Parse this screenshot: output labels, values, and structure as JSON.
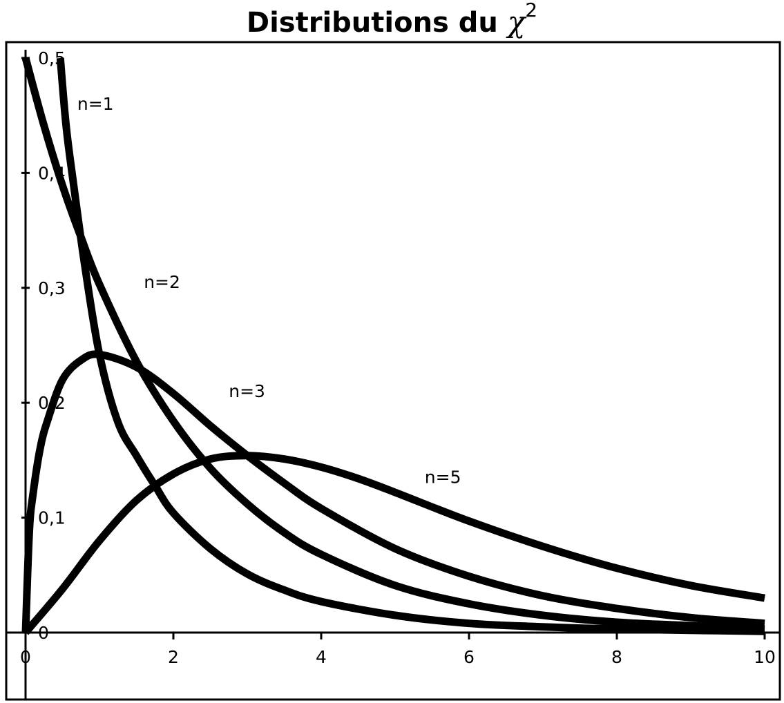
{
  "chart_data": {
    "type": "line",
    "title": {
      "prefix": "Distributions du ",
      "symbol": "χ",
      "exponent": "2"
    },
    "xlabel": "",
    "ylabel": "",
    "xlim": [
      0,
      10
    ],
    "ylim": [
      0,
      0.5
    ],
    "grid": false,
    "legend": "none",
    "x_ticks": [
      {
        "value": 0,
        "label": "0"
      },
      {
        "value": 2,
        "label": "2"
      },
      {
        "value": 4,
        "label": "4"
      },
      {
        "value": 6,
        "label": "6"
      },
      {
        "value": 8,
        "label": "8"
      },
      {
        "value": 10,
        "label": "10"
      }
    ],
    "y_ticks": [
      {
        "value": 0,
        "label": "0"
      },
      {
        "value": 0.1,
        "label": "0,1"
      },
      {
        "value": 0.2,
        "label": "0,2"
      },
      {
        "value": 0.3,
        "label": "0,3"
      },
      {
        "value": 0.4,
        "label": "0,4"
      },
      {
        "value": 0.5,
        "label": "0,5"
      }
    ],
    "line_color": "#000000",
    "series": [
      {
        "label": "n=1",
        "label_at": [
          0.7,
          0.455
        ],
        "x": [
          0.47,
          0.55,
          0.65,
          0.8,
          1.0,
          1.25,
          1.5,
          1.75,
          2.0,
          2.5,
          3.0,
          3.5,
          4.0,
          5.0,
          6.0,
          7.0,
          8.0,
          9.0,
          10.0
        ],
        "y": [
          0.5,
          0.44,
          0.39,
          0.32,
          0.242,
          0.183,
          0.154,
          0.128,
          0.104,
          0.073,
          0.051,
          0.037,
          0.027,
          0.015,
          0.008,
          0.005,
          0.003,
          0.002,
          0.001
        ]
      },
      {
        "label": "n=2",
        "label_at": [
          1.6,
          0.3
        ],
        "x": [
          0.0,
          0.25,
          0.5,
          0.75,
          1.0,
          1.5,
          2.0,
          2.5,
          3.0,
          3.5,
          4.0,
          5.0,
          6.0,
          7.0,
          8.0,
          9.0,
          10.0
        ],
        "y": [
          0.5,
          0.441,
          0.389,
          0.344,
          0.303,
          0.236,
          0.184,
          0.143,
          0.112,
          0.087,
          0.068,
          0.041,
          0.025,
          0.015,
          0.009,
          0.006,
          0.003
        ]
      },
      {
        "label": "n=3",
        "label_at": [
          2.75,
          0.205
        ],
        "x": [
          0.0,
          0.05,
          0.1,
          0.2,
          0.3,
          0.5,
          0.75,
          1.0,
          1.5,
          2.0,
          2.5,
          3.0,
          3.5,
          4.0,
          5.0,
          6.0,
          7.0,
          8.0,
          9.0,
          10.0
        ],
        "y": [
          0.0,
          0.087,
          0.12,
          0.161,
          0.185,
          0.22,
          0.237,
          0.242,
          0.231,
          0.208,
          0.18,
          0.154,
          0.13,
          0.108,
          0.073,
          0.049,
          0.032,
          0.021,
          0.013,
          0.008
        ]
      },
      {
        "label": "n=5",
        "label_at": [
          5.4,
          0.13
        ],
        "x": [
          0.0,
          0.5,
          1.0,
          1.5,
          2.0,
          2.5,
          3.0,
          3.5,
          4.0,
          4.5,
          5.0,
          6.0,
          7.0,
          8.0,
          9.0,
          10.0
        ],
        "y": [
          0.0,
          0.038,
          0.08,
          0.115,
          0.138,
          0.151,
          0.154,
          0.151,
          0.144,
          0.134,
          0.122,
          0.097,
          0.075,
          0.056,
          0.041,
          0.03
        ]
      }
    ]
  }
}
